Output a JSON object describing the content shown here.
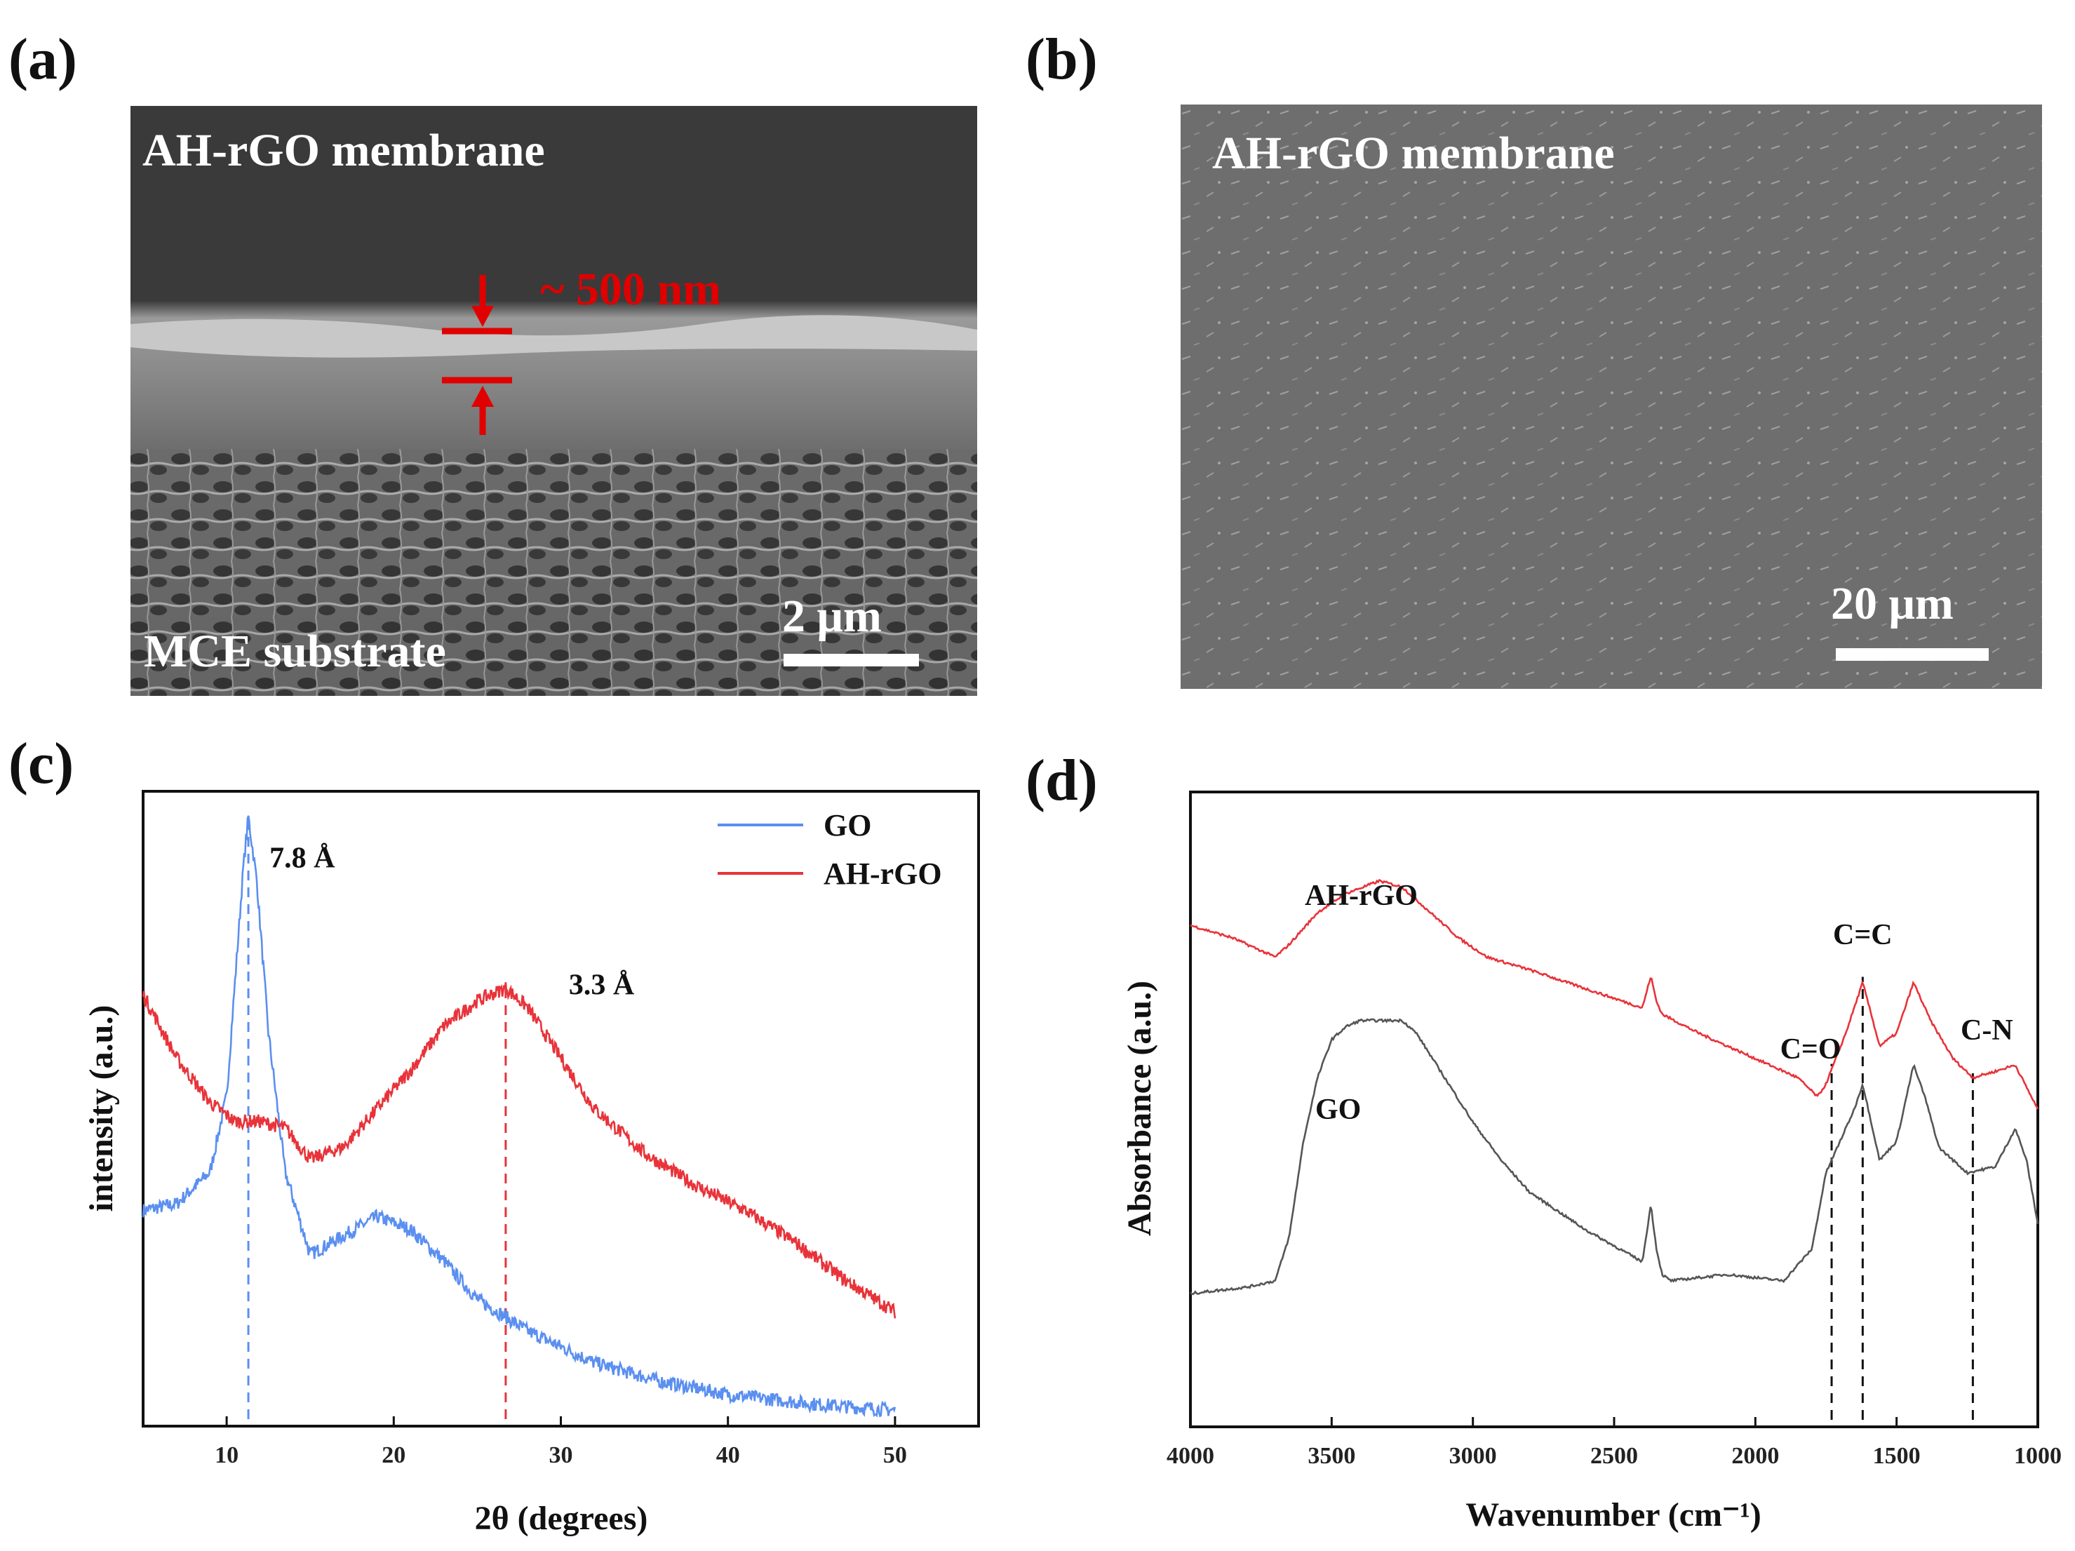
{
  "panels": {
    "a": {
      "label": "(a)",
      "title": "AH-rGO membrane",
      "thickness": "~ 500 nm",
      "substrate": "MCE  substrate",
      "scale_bar": "2 μm"
    },
    "b": {
      "label": "(b)",
      "title": "AH-rGO membrane",
      "scale_bar": "20 μm"
    },
    "c": {
      "label": "(c)"
    },
    "d": {
      "label": "(d)"
    }
  },
  "colors": {
    "go_blue": "#5b8ff0",
    "ahrgo_red": "#e8333a",
    "go_gray": "#555555",
    "scale_red": "#e00000"
  },
  "chart_data": [
    {
      "type": "line",
      "panel": "c",
      "xlabel": "2θ (degrees)",
      "ylabel": "intensity (a.u.)",
      "xlim": [
        5,
        55
      ],
      "ylim": [
        0,
        100
      ],
      "xticks": [
        10,
        20,
        30,
        40,
        50
      ],
      "legend": {
        "placement": "top-right",
        "entries": [
          "GO",
          "AH-rGO"
        ]
      },
      "annotations": [
        {
          "text": "7.8 Å",
          "x": 11.3
        },
        {
          "text": "3.3 Å",
          "x": 26.7
        }
      ],
      "series": [
        {
          "name": "GO",
          "color": "#5b8ff0",
          "x": [
            5,
            7,
            9,
            10,
            10.5,
            11,
            11.3,
            11.8,
            12.5,
            13.5,
            15,
            17,
            19,
            21,
            23,
            25,
            28,
            32,
            36,
            40,
            45,
            50
          ],
          "y": [
            34,
            35,
            40,
            52,
            70,
            88,
            96,
            86,
            62,
            40,
            27,
            30,
            33,
            31,
            26,
            20,
            15,
            10,
            7,
            5,
            3.5,
            2.5
          ]
        },
        {
          "name": "AH-rGO",
          "color": "#e8333a",
          "x": [
            5,
            7,
            9,
            10.5,
            12,
            13.5,
            15,
            17,
            19,
            21,
            23,
            25,
            26.7,
            28,
            30,
            32,
            35,
            38,
            41,
            44,
            47,
            50
          ],
          "y": [
            68,
            58,
            51,
            48,
            48,
            47,
            42,
            44,
            50,
            56,
            63,
            67,
            69,
            66,
            58,
            50,
            43,
            38,
            34,
            29,
            23,
            18
          ]
        }
      ]
    },
    {
      "type": "line",
      "panel": "d",
      "xlabel": "Wavenumber (cm⁻¹)",
      "ylabel": "Absorbance (a.u.)",
      "xlim": [
        4000,
        1000
      ],
      "ylim": [
        0,
        100
      ],
      "xticks": [
        4000,
        3500,
        3000,
        2500,
        2000,
        1500,
        1000
      ],
      "labels": [
        {
          "text": "AH-rGO",
          "series": "AH-rGO"
        },
        {
          "text": "GO",
          "series": "GO"
        }
      ],
      "annotations": [
        {
          "text": "C=O",
          "x": 1730
        },
        {
          "text": "C=C",
          "x": 1620
        },
        {
          "text": "C-N",
          "x": 1230
        }
      ],
      "series": [
        {
          "name": "AH-rGO",
          "color": "#e8333a",
          "x": [
            4000,
            3850,
            3700,
            3650,
            3550,
            3450,
            3330,
            3250,
            3150,
            3050,
            2950,
            2800,
            2600,
            2400,
            2370,
            2350,
            2330,
            2200,
            2000,
            1850,
            1780,
            1750,
            1680,
            1620,
            1560,
            1500,
            1440,
            1380,
            1300,
            1230,
            1150,
            1080,
            1000
          ],
          "y": [
            79,
            77,
            74,
            76,
            81,
            84,
            86,
            85,
            81,
            77,
            74,
            72,
            69,
            66,
            71,
            67,
            65,
            62,
            58,
            55,
            52,
            54,
            62,
            70,
            60,
            62,
            70,
            64,
            58,
            55,
            56,
            57,
            50
          ]
        },
        {
          "name": "GO",
          "color": "#555555",
          "x": [
            4000,
            3800,
            3700,
            3650,
            3600,
            3550,
            3500,
            3450,
            3400,
            3350,
            3300,
            3250,
            3200,
            3100,
            3000,
            2900,
            2800,
            2600,
            2400,
            2370,
            2350,
            2330,
            2300,
            2100,
            1900,
            1800,
            1750,
            1700,
            1650,
            1620,
            1560,
            1500,
            1440,
            1400,
            1350,
            1250,
            1150,
            1080,
            1040,
            1000
          ],
          "y": [
            21,
            22,
            23,
            30,
            45,
            55,
            61,
            63,
            64,
            64,
            64,
            64,
            62,
            55,
            48,
            42,
            37,
            31,
            26,
            35,
            28,
            24,
            23,
            24,
            23,
            28,
            40,
            45,
            50,
            54,
            42,
            45,
            57,
            52,
            44,
            40,
            41,
            47,
            42,
            32
          ]
        }
      ]
    }
  ]
}
